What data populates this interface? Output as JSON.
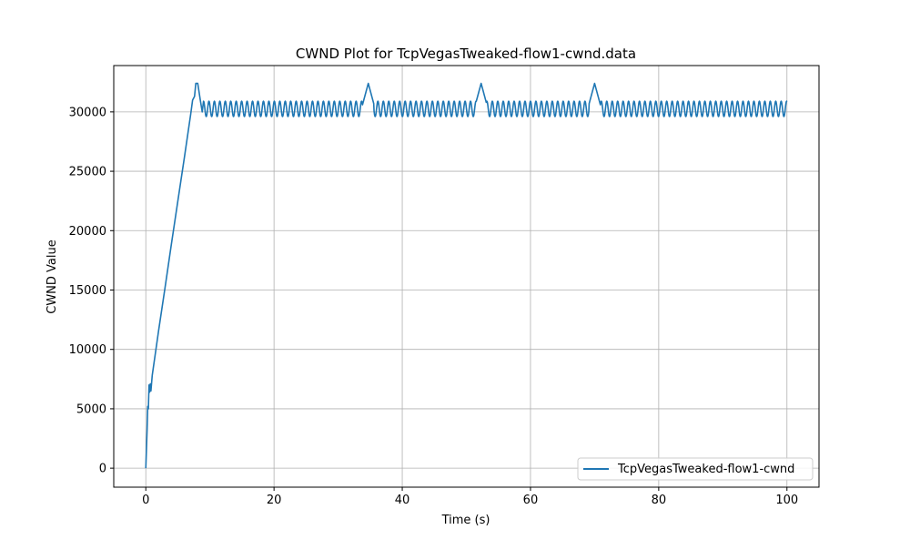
{
  "chart_data": {
    "type": "line",
    "title": "CWND Plot for TcpVegasTweaked-flow1-cwnd.data",
    "xlabel": "Time (s)",
    "ylabel": "CWND Value",
    "xlim": [
      -5,
      105
    ],
    "ylim": [
      -1600,
      33900
    ],
    "x_ticks": [
      0,
      20,
      40,
      60,
      80,
      100
    ],
    "y_ticks": [
      0,
      5000,
      10000,
      15000,
      20000,
      25000,
      30000
    ],
    "grid": true,
    "legend_position": "lower-right",
    "series": [
      {
        "name": "TcpVegasTweaked-flow1-cwnd",
        "color": "#1f77b4",
        "description_points": {
          "startup": [
            [
              0,
              0
            ],
            [
              0.2,
              3200
            ],
            [
              0.3,
              5200
            ],
            [
              0.4,
              5000
            ],
            [
              0.5,
              7000
            ],
            [
              0.6,
              6400
            ],
            [
              0.7,
              7100
            ],
            [
              0.8,
              6500
            ],
            [
              1.0,
              7800
            ],
            [
              2.0,
              11600
            ],
            [
              3.0,
              15200
            ],
            [
              4.0,
              18900
            ],
            [
              5.0,
              22500
            ],
            [
              6.0,
              26100
            ],
            [
              7.0,
              29800
            ],
            [
              7.3,
              31000
            ],
            [
              7.6,
              31300
            ],
            [
              7.8,
              32400
            ],
            [
              8.1,
              32400
            ],
            [
              8.5,
              31000
            ],
            [
              8.8,
              30000
            ]
          ],
          "oscillation": {
            "start": 9,
            "end": 100,
            "low": 29600,
            "high": 30900,
            "period": 0.85
          },
          "spikes": [
            {
              "x": 34.7,
              "peak": 32400
            },
            {
              "x": 52.3,
              "peak": 32400
            },
            {
              "x": 70.0,
              "peak": 32400
            }
          ]
        }
      }
    ]
  }
}
